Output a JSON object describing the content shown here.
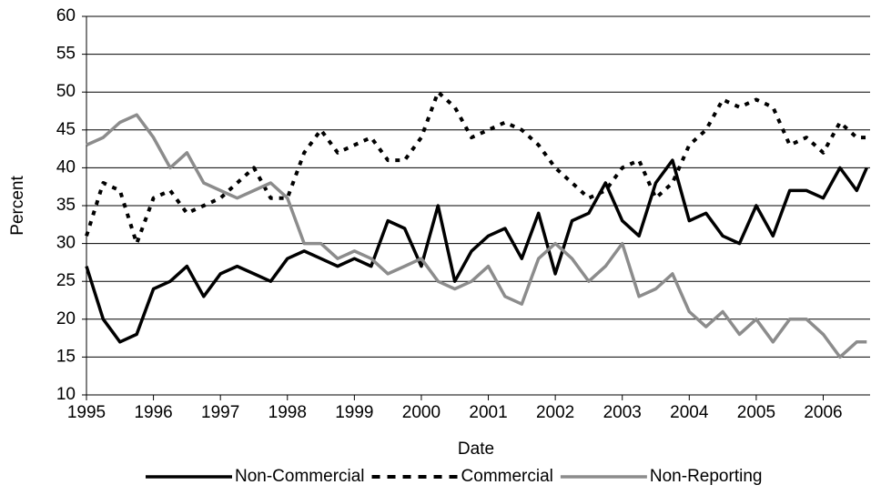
{
  "chart_data": {
    "type": "line",
    "x_label": "Date",
    "y_label": "Percent",
    "x": [
      1995,
      1995.25,
      1995.5,
      1995.75,
      1996,
      1996.25,
      1996.5,
      1996.75,
      1997,
      1997.25,
      1997.5,
      1997.75,
      1998,
      1998.25,
      1998.5,
      1998.75,
      1999,
      1999.25,
      1999.5,
      1999.75,
      2000,
      2000.25,
      2000.5,
      2000.75,
      2001,
      2001.25,
      2001.5,
      2001.75,
      2002,
      2002.25,
      2002.5,
      2002.75,
      2003,
      2003.25,
      2003.5,
      2003.75,
      2004,
      2004.25,
      2004.5,
      2004.75,
      2005,
      2005.25,
      2005.5,
      2005.75,
      2006,
      2006.25,
      2006.5,
      2006.65
    ],
    "series": [
      {
        "name": "Non-Commercial",
        "color": "#000000",
        "dash": false,
        "values": [
          27,
          20,
          17,
          18,
          24,
          25,
          27,
          23,
          26,
          27,
          26,
          25,
          28,
          29,
          28,
          27,
          28,
          27,
          33,
          32,
          27,
          35,
          25,
          29,
          31,
          32,
          28,
          34,
          26,
          33,
          34,
          38,
          33,
          31,
          38,
          41,
          33,
          34,
          31,
          30,
          35,
          31,
          37,
          37,
          36,
          40,
          37,
          40
        ]
      },
      {
        "name": "Commercial",
        "color": "#000000",
        "dash": true,
        "values": [
          31,
          38,
          37,
          30,
          36,
          37,
          34,
          35,
          36,
          38,
          40,
          36,
          36,
          42,
          45,
          42,
          43,
          44,
          41,
          41,
          44,
          50,
          48,
          44,
          45,
          46,
          45,
          43,
          40,
          38,
          36,
          37,
          40,
          41,
          36,
          38,
          43,
          45,
          49,
          48,
          49,
          48,
          43,
          44,
          42,
          46,
          44,
          44
        ]
      },
      {
        "name": "Non-Reporting",
        "color": "#8c8c8c",
        "dash": false,
        "values": [
          43,
          44,
          46,
          47,
          44,
          40,
          42,
          38,
          37,
          36,
          37,
          38,
          36,
          30,
          30,
          28,
          29,
          28,
          26,
          27,
          28,
          25,
          24,
          25,
          27,
          23,
          22,
          28,
          30,
          28,
          25,
          27,
          30,
          23,
          24,
          26,
          21,
          19,
          21,
          18,
          20,
          17,
          20,
          20,
          18,
          15,
          17,
          17
        ]
      }
    ],
    "xlim": [
      1995,
      2006.7
    ],
    "xticks": [
      1995,
      1996,
      1997,
      1998,
      1999,
      2000,
      2001,
      2002,
      2003,
      2004,
      2005,
      2006
    ],
    "ylim": [
      10,
      60
    ],
    "yticks": [
      10,
      15,
      20,
      25,
      30,
      35,
      40,
      45,
      50,
      55,
      60
    ],
    "grid": true,
    "legend": "bottom"
  }
}
